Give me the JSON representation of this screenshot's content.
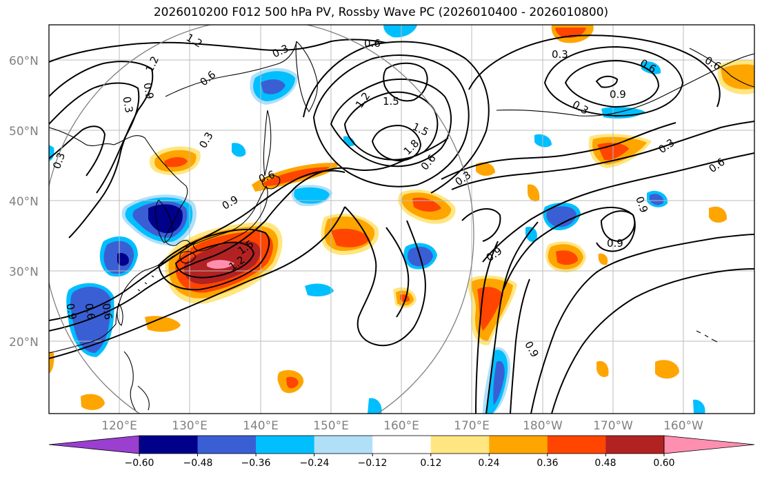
{
  "title": "2026010200 F012 500 hPa PV, Rossby Wave PC (2026010400 - 2026010800)",
  "latitude_labels": [
    "60°N",
    "50°N",
    "40°N",
    "30°N",
    "20°N"
  ],
  "longitude_labels": [
    "120°E",
    "130°E",
    "140°E",
    "150°E",
    "160°E",
    "170°E",
    "180°W",
    "170°W",
    "160°W"
  ],
  "colorbar": {
    "tick_labels": [
      "−0.60",
      "−0.48",
      "−0.36",
      "−0.24",
      "−0.12",
      "0.12",
      "0.24",
      "0.36",
      "0.48",
      "0.60"
    ],
    "colors": [
      "#9a3fd0",
      "#00008b",
      "#3a5fd4",
      "#00bfff",
      "#b0e0f8",
      "#ffffff",
      "#ffe680",
      "#ffa500",
      "#ff4500",
      "#b22222",
      "#ff8fb0"
    ],
    "extend": "both"
  },
  "contour_labels": [
    "1.2",
    "0.3",
    "0.6",
    "1.2",
    "0.9",
    "0.3",
    "0.6",
    "1.2",
    "1.5",
    "1.5",
    "1.8",
    "0.6",
    "0.3",
    "0.3",
    "0.9",
    "0.6",
    "0.6",
    "0.3",
    "0.6",
    "0.9",
    "0.9",
    "1.2",
    "1.5",
    "0.3",
    "0.9",
    "0.6",
    "0.6",
    "0.9",
    "0.6",
    "0.9",
    "0.3",
    "0.3",
    "0.9"
  ]
}
